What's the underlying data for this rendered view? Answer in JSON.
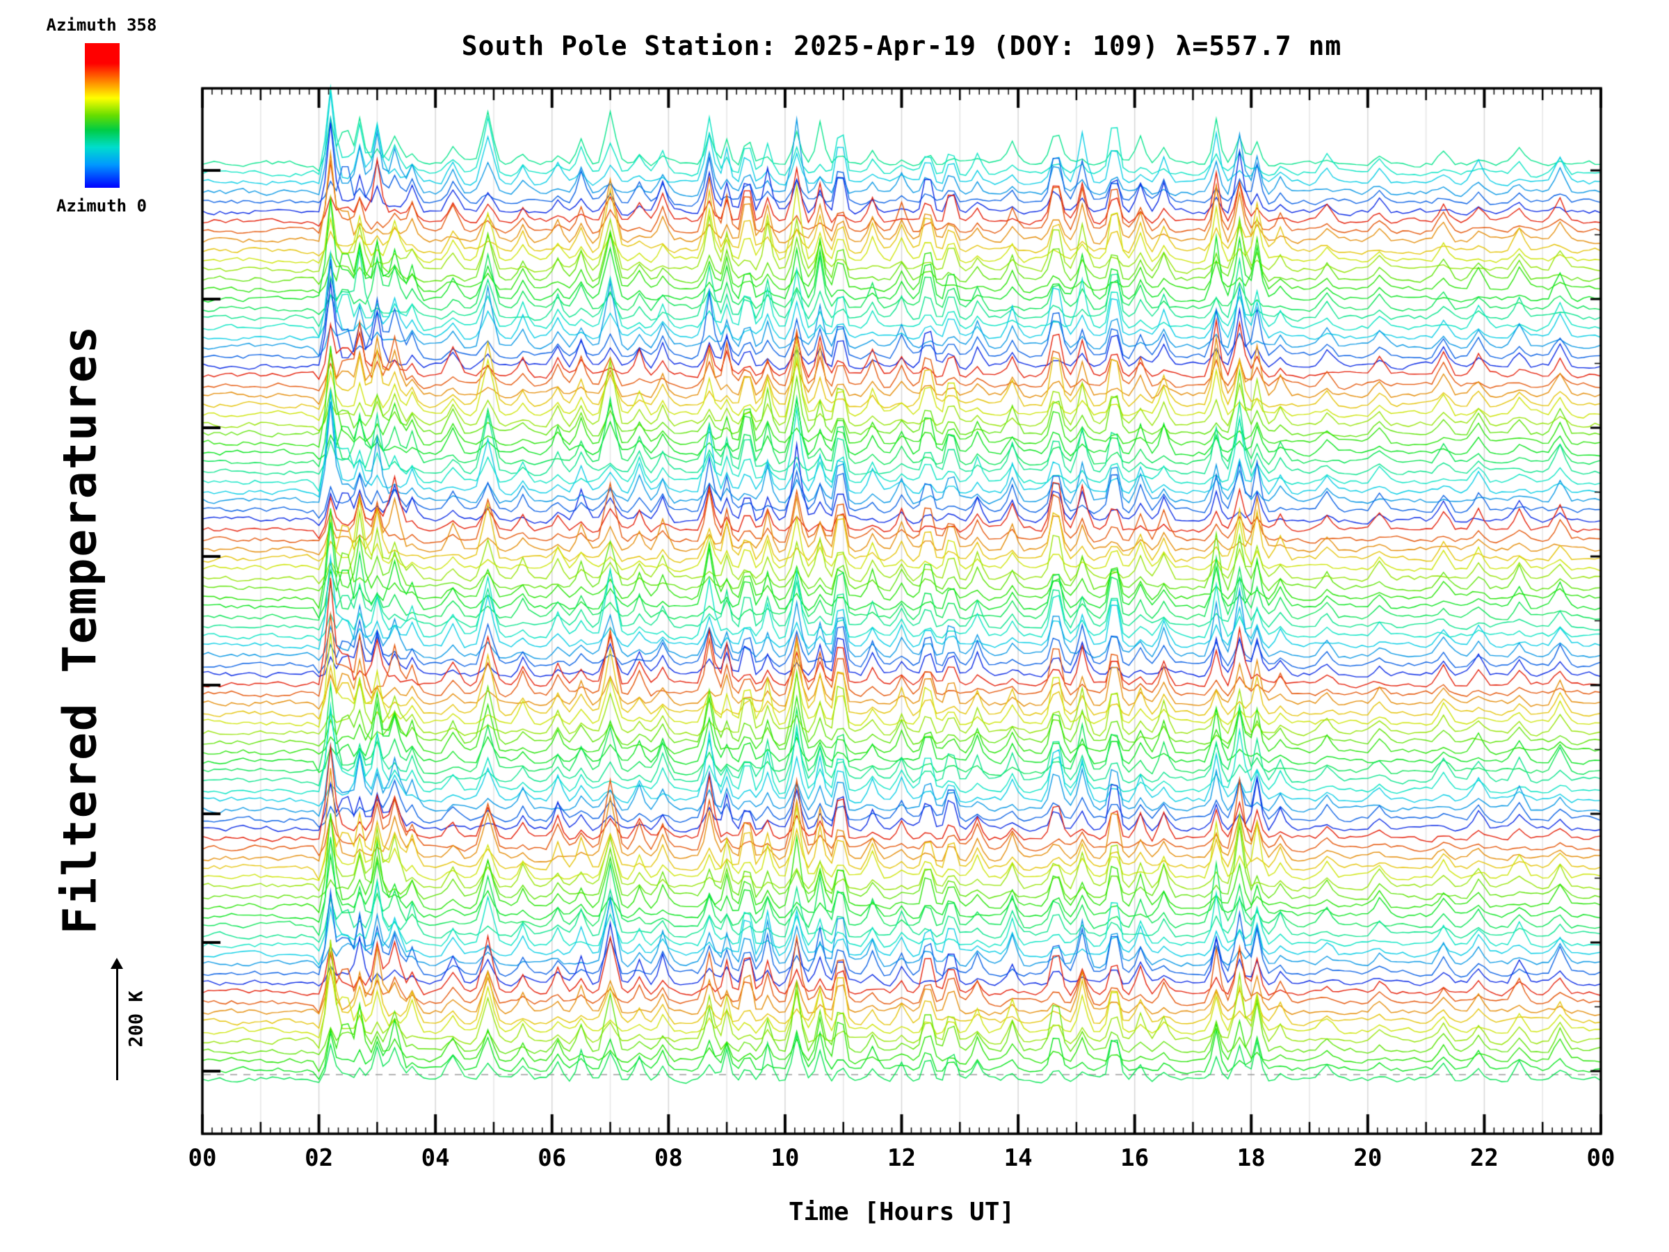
{
  "header": {
    "title": "South Pole Station: 2025-Apr-19 (DOY: 109) λ=557.7 nm"
  },
  "colorbar": {
    "top_label": "Azimuth 358",
    "bottom_label": "Azimuth 0",
    "colors_top_to_bottom": [
      "#ff0000",
      "#ff8000",
      "#ffff00",
      "#66dd00",
      "#00ddcc",
      "#0099ff",
      "#0000ff"
    ]
  },
  "y_axis": {
    "label": "Filtered Temperatures"
  },
  "x_axis": {
    "label": "Time [Hours UT]",
    "tick_labels": [
      "00",
      "02",
      "04",
      "06",
      "08",
      "10",
      "12",
      "14",
      "16",
      "18",
      "20",
      "22",
      "00"
    ]
  },
  "scale_arrow": {
    "label": "200 K"
  },
  "chart_data": {
    "type": "line",
    "title": "South Pole Station: 2025-Apr-19 (DOY: 109) λ=557.7 nm",
    "xlabel": "Time [Hours UT]",
    "ylabel": "Filtered Temperatures",
    "x_range_hours": [
      0,
      24
    ],
    "x_tick_labels": [
      "00",
      "02",
      "04",
      "06",
      "08",
      "10",
      "12",
      "14",
      "16",
      "18",
      "20",
      "22",
      "00"
    ],
    "x_major_tick_step_hours": 2,
    "x_minor_tick_step_hours": 0.1667,
    "grid": "vertical-hourly-light-gray",
    "legend_position": "top-left-colorbar",
    "colorbar": {
      "parameter": "Azimuth",
      "min": 0,
      "max": 358,
      "colormap": "rainbow-blue0-to-red358"
    },
    "vertical_scale": {
      "label": "200 K",
      "arrow_length_fraction_of_height": 0.117
    },
    "trace_count": 96,
    "color_cycles_top_to_bottom": 6,
    "color_phase_start": 0.35,
    "points_per_trace": 241,
    "noise_seed": 42,
    "baseline_dashed_line": true,
    "events": [
      {
        "t": 2.05,
        "a": -20,
        "w": 0.08
      },
      {
        "t": 2.2,
        "a": 120,
        "w": 0.1
      },
      {
        "t": 2.45,
        "a": 60,
        "w": 0.08
      },
      {
        "t": 2.7,
        "a": 80,
        "w": 0.1
      },
      {
        "t": 3.0,
        "a": 70,
        "w": 0.1
      },
      {
        "t": 3.3,
        "a": 60,
        "w": 0.12
      },
      {
        "t": 3.6,
        "a": 35,
        "w": 0.1
      },
      {
        "t": 4.3,
        "a": 30,
        "w": 0.12
      },
      {
        "t": 4.9,
        "a": 70,
        "w": 0.12
      },
      {
        "t": 5.5,
        "a": 25,
        "w": 0.1
      },
      {
        "t": 6.1,
        "a": 30,
        "w": 0.1
      },
      {
        "t": 6.5,
        "a": 35,
        "w": 0.1
      },
      {
        "t": 7.0,
        "a": 80,
        "w": 0.12
      },
      {
        "t": 7.5,
        "a": 30,
        "w": 0.1
      },
      {
        "t": 7.9,
        "a": 35,
        "w": 0.1
      },
      {
        "t": 8.7,
        "a": 75,
        "w": 0.1
      },
      {
        "t": 9.0,
        "a": 45,
        "w": 0.08
      },
      {
        "t": 9.35,
        "a": 55,
        "w": 0.09
      },
      {
        "t": 9.7,
        "a": 55,
        "w": 0.09
      },
      {
        "t": 10.2,
        "a": 85,
        "w": 0.1
      },
      {
        "t": 10.6,
        "a": 60,
        "w": 0.09
      },
      {
        "t": 10.95,
        "a": 70,
        "w": 0.09
      },
      {
        "t": 11.5,
        "a": 30,
        "w": 0.1
      },
      {
        "t": 12.0,
        "a": 30,
        "w": 0.1
      },
      {
        "t": 12.45,
        "a": 50,
        "w": 0.1
      },
      {
        "t": 12.85,
        "a": 45,
        "w": 0.09
      },
      {
        "t": 13.3,
        "a": 30,
        "w": 0.1
      },
      {
        "t": 13.9,
        "a": 35,
        "w": 0.1
      },
      {
        "t": 14.65,
        "a": 70,
        "w": 0.12
      },
      {
        "t": 15.1,
        "a": 55,
        "w": 0.1
      },
      {
        "t": 15.65,
        "a": 65,
        "w": 0.1
      },
      {
        "t": 16.1,
        "a": 35,
        "w": 0.1
      },
      {
        "t": 16.5,
        "a": 35,
        "w": 0.1
      },
      {
        "t": 17.4,
        "a": 70,
        "w": 0.09
      },
      {
        "t": 17.8,
        "a": 85,
        "w": 0.1
      },
      {
        "t": 18.1,
        "a": 60,
        "w": 0.09
      },
      {
        "t": 18.5,
        "a": 25,
        "w": 0.1
      },
      {
        "t": 19.3,
        "a": 20,
        "w": 0.12
      },
      {
        "t": 20.2,
        "a": 20,
        "w": 0.12
      },
      {
        "t": 21.3,
        "a": 25,
        "w": 0.12
      },
      {
        "t": 21.9,
        "a": 25,
        "w": 0.12
      },
      {
        "t": 22.6,
        "a": 25,
        "w": 0.12
      },
      {
        "t": 23.3,
        "a": 30,
        "w": 0.12
      }
    ]
  }
}
